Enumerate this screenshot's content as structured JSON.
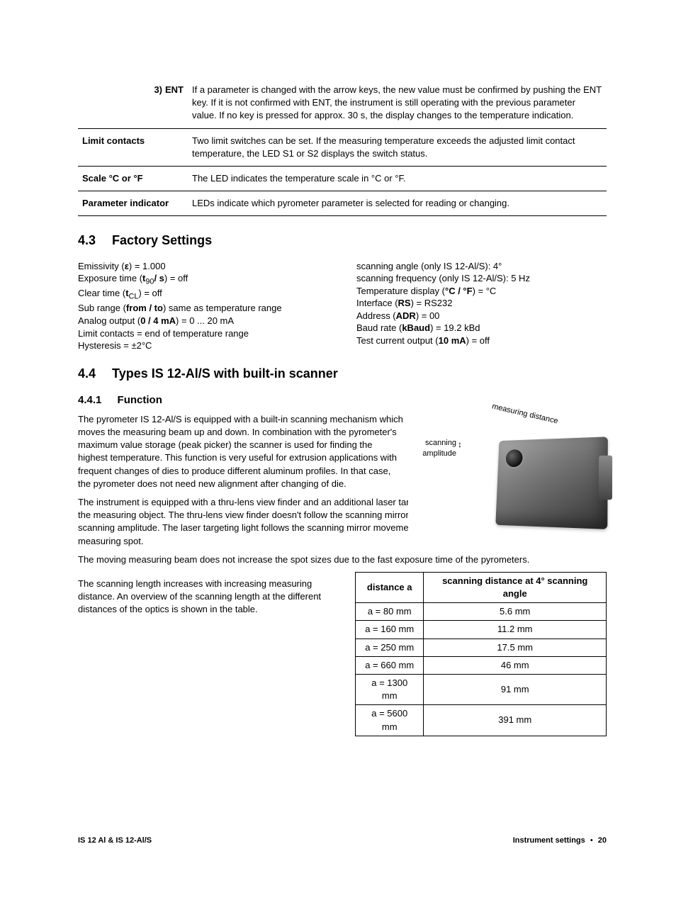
{
  "definitions": [
    {
      "label_prefix": "3)",
      "label": "ENT",
      "label_align": "right",
      "text": "If a parameter is changed with the arrow keys, the new value must be confirmed by pushing the ENT key. If it is not confirmed with ENT, the instrument is still operating with the previous parameter value. If no key is pressed for approx. 30 s, the display changes to the temperature indication."
    },
    {
      "label": "Limit contacts",
      "text": "Two limit switches can be set. If the measuring temperature exceeds the adjusted limit contact temperature, the LED S1 or S2 displays the switch status."
    },
    {
      "label": "Scale °C or °F",
      "text": "The LED indicates the temperature scale in °C or °F."
    },
    {
      "label": "Parameter indicator",
      "text": "LEDs indicate which pyrometer parameter is selected for reading or changing."
    }
  ],
  "sections": {
    "factory": {
      "num": "4.3",
      "title": "Factory Settings"
    },
    "types": {
      "num": "4.4",
      "title": "Types IS 12-Al/S with built-in scanner"
    },
    "function": {
      "num": "4.4.1",
      "title": "Function"
    }
  },
  "factory_left": [
    "Emissivity (<b>ε</b>) = 1.000",
    "Exposure time (<b>t</b><sub>90</sub><b>/ s</b>) = off",
    "Clear time (<b>t</b><sub>CL</sub>) = off",
    "Sub range (<b>from / to</b>) same as temperature range",
    "Analog output (<b>0 / 4 mA</b>) = 0 ... 20 mA",
    "Limit contacts = end of temperature range",
    "Hysteresis = ±2°C"
  ],
  "factory_right": [
    "scanning angle (only IS 12-Al/S): 4°",
    "scanning frequency (only IS 12-Al/S): 5 Hz",
    "Temperature display (<b>°C / °F</b>) = °C",
    "Interface (<b>RS</b>) = RS232",
    "Address (<b>ADR</b>) = 00",
    "Baud rate (<b>kBaud</b>) = 19.2 kBd",
    "Test current output (<b>10 mA</b>) = off"
  ],
  "function_paras": [
    "The pyrometer IS 12-Al/S is equipped with a built-in scanning mechanism which moves the measuring beam up and down. In combination with the pyrometer's maximum value storage (peak picker) the scanner is used for finding the highest temperature. This function is very useful for extrusion applications with frequent changes of dies to produce different aluminum profiles. In that case, the pyrometer does not need new alignment after changing of die.",
    "The instrument is equipped with a thru-lens view finder and an additional laser targeting light for exact alignment to the position of the measuring object. The thru-lens view finder doesn't follow the scanning mirror movement, it always shows the center of the scanning amplitude. The laser targeting light follows the scanning mirror movement and shows always the position of the measuring spot.",
    "The moving measuring beam does not increase the spot sizes due to the fast exposure time of the pyrometers."
  ],
  "scan_left_text": "The scanning length increases with increasing measuring distance. An overview of the scanning length at the different distances of the optics is shown in the table.",
  "image_labels": {
    "scan_amp_1": "scanning",
    "scan_amp_2": "amplitude",
    "meas_dist": "measuring distance"
  },
  "scan_table": {
    "head": [
      "distance a",
      "scanning distance at 4° scanning angle"
    ],
    "rows": [
      [
        "a = 80 mm",
        "5.6 mm"
      ],
      [
        "a = 160 mm",
        "11.2 mm"
      ],
      [
        "a = 250 mm",
        "17.5 mm"
      ],
      [
        "a = 660 mm",
        "46 mm"
      ],
      [
        "a = 1300 mm",
        "91 mm"
      ],
      [
        "a = 5600 mm",
        "391 mm"
      ]
    ]
  },
  "footer": {
    "left": "IS 12 Al & IS 12-Al/S",
    "right_label": "Instrument settings",
    "page": "20"
  }
}
